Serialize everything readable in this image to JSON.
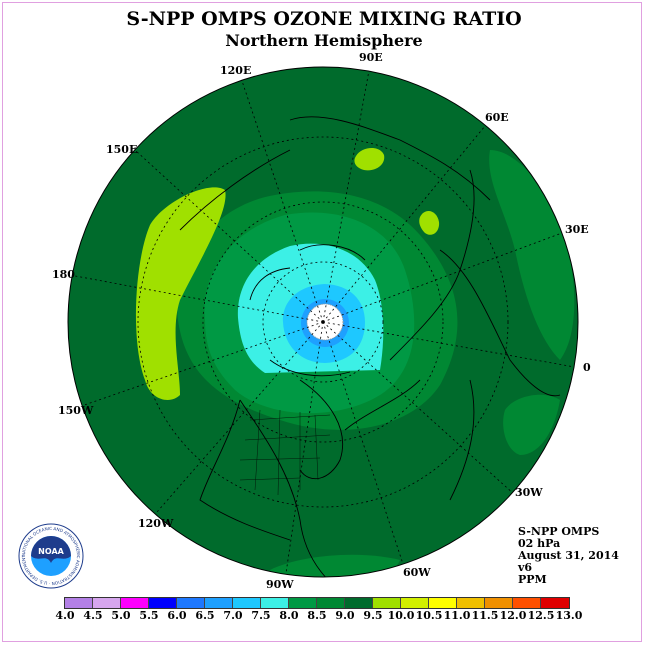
{
  "title": "S-NPP OMPS OZONE MIXING RATIO",
  "subtitle": "Northern Hemisphere",
  "longitude_labels": {
    "lon_120e": "120E",
    "lon_90e": "90E",
    "lon_60e": "60E",
    "lon_150e": "150E",
    "lon_30e": "30E",
    "lon_180": "180",
    "lon_0": "0",
    "lon_150w": "150W",
    "lon_30w": "30W",
    "lon_120w": "120W",
    "lon_60w": "60W",
    "lon_90w": "90W"
  },
  "info": {
    "instrument": "S-NPP OMPS",
    "level": "02 hPa",
    "date": "August 31, 2014",
    "version": "v6",
    "units": "PPM"
  },
  "logo": {
    "text": "NOAA",
    "ring_text": "NATIONAL OCEANIC AND ATMOSPHERIC ADMINISTRATION · U.S. DEPARTMENT OF COMMERCE"
  },
  "colorbar": {
    "ticks": [
      "4.0",
      "4.5",
      "5.0",
      "5.5",
      "6.0",
      "6.5",
      "7.0",
      "7.5",
      "8.0",
      "8.5",
      "9.0",
      "9.5",
      "10.0",
      "10.5",
      "11.0",
      "11.5",
      "12.0",
      "12.5",
      "13.0"
    ],
    "colors": [
      "#b380e6",
      "#d6a6ee",
      "#ff00ff",
      "#0000ff",
      "#1e78ff",
      "#1ea0ff",
      "#1ec8ff",
      "#3cf0e6",
      "#009944",
      "#008833",
      "#006b2c",
      "#a0e000",
      "#d2f000",
      "#ffff00",
      "#f0c000",
      "#f09000",
      "#ff5000",
      "#e00000",
      "#8b5a2b"
    ]
  },
  "colors": {
    "ppm_8_5": "#008833",
    "ppm_9_0": "#006b2c",
    "ppm_9_5": "#a0e000",
    "ppm_8_0": "#009944",
    "ppm_7_5": "#3cf0e6",
    "ppm_7_0": "#1ec8ff",
    "ppm_6_5": "#1ea0ff"
  }
}
